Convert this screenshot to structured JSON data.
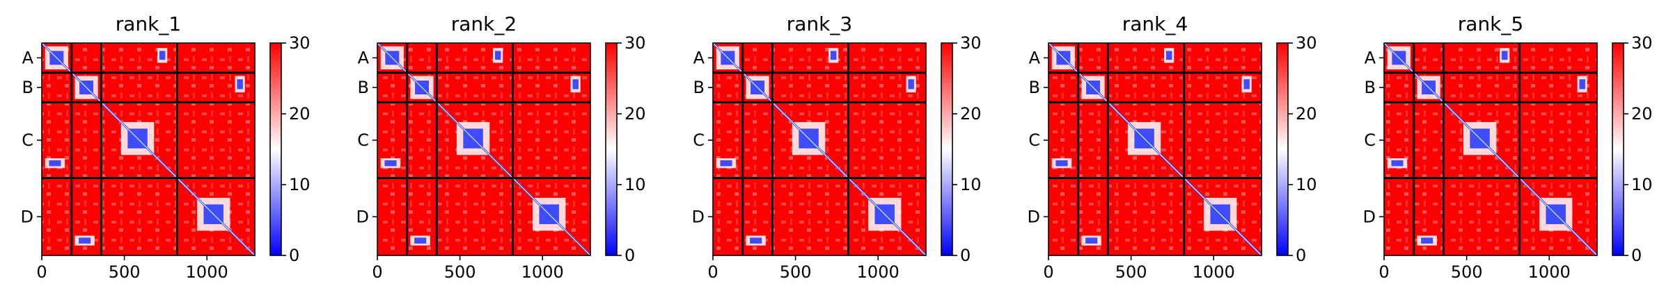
{
  "chart_data": {
    "type": "heatmap",
    "description_panels": 5,
    "panels": [
      {
        "title": "rank_1"
      },
      {
        "title": "rank_2"
      },
      {
        "title": "rank_3"
      },
      {
        "title": "rank_4"
      },
      {
        "title": "rank_5"
      }
    ],
    "x_ticks": [
      "0",
      "500",
      "1000"
    ],
    "x_tick_values": [
      0,
      500,
      1000
    ],
    "xlim": [
      0,
      1290
    ],
    "ylim": [
      0,
      1290
    ],
    "chain_labels": [
      "A",
      "B",
      "C",
      "D"
    ],
    "chain_boundaries": [
      0,
      180,
      360,
      820,
      1290
    ],
    "colorbar": {
      "min": 0,
      "max": 30,
      "ticks": [
        "0",
        "10",
        "20",
        "30"
      ],
      "tick_values": [
        0,
        10,
        20,
        30
      ],
      "colormap": "bwr",
      "colors": [
        "#0000ff",
        "#ffffff",
        "#ff0000"
      ]
    },
    "low_error_blocks": [
      {
        "x": [
          20,
          160
        ],
        "y": [
          20,
          160
        ]
      },
      {
        "x": [
          200,
          340
        ],
        "y": [
          200,
          340
        ]
      },
      {
        "x": [
          480,
          680
        ],
        "y": [
          480,
          680
        ]
      },
      {
        "x": [
          940,
          1140
        ],
        "y": [
          940,
          1140
        ]
      },
      {
        "x": [
          700,
          760
        ],
        "y": [
          30,
          120
        ]
      },
      {
        "x": [
          1170,
          1230
        ],
        "y": [
          200,
          300
        ]
      },
      {
        "x": [
          20,
          140
        ],
        "y": [
          700,
          760
        ]
      },
      {
        "x": [
          200,
          320
        ],
        "y": [
          1170,
          1230
        ]
      }
    ],
    "grid": false,
    "legend": "none"
  }
}
